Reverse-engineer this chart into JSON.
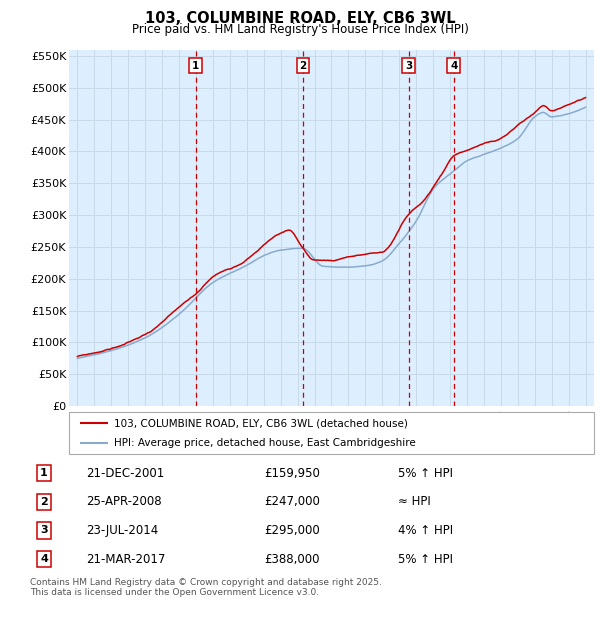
{
  "title": "103, COLUMBINE ROAD, ELY, CB6 3WL",
  "subtitle": "Price paid vs. HM Land Registry's House Price Index (HPI)",
  "ylabel_ticks": [
    "£0",
    "£50K",
    "£100K",
    "£150K",
    "£200K",
    "£250K",
    "£300K",
    "£350K",
    "£400K",
    "£450K",
    "£500K",
    "£550K"
  ],
  "ytick_values": [
    0,
    50000,
    100000,
    150000,
    200000,
    250000,
    300000,
    350000,
    400000,
    450000,
    500000,
    550000
  ],
  "xmin": 1994.5,
  "xmax": 2025.5,
  "ymin": 0,
  "ymax": 560000,
  "legend_house": "103, COLUMBINE ROAD, ELY, CB6 3WL (detached house)",
  "legend_hpi": "HPI: Average price, detached house, East Cambridgeshire",
  "transactions": [
    {
      "num": 1,
      "date": "21-DEC-2001",
      "price": "£159,950",
      "relation": "5% ↑ HPI",
      "year": 2001.97
    },
    {
      "num": 2,
      "date": "25-APR-2008",
      "price": "£247,000",
      "relation": "≈ HPI",
      "year": 2008.32
    },
    {
      "num": 3,
      "date": "23-JUL-2014",
      "price": "£295,000",
      "relation": "4% ↑ HPI",
      "year": 2014.56
    },
    {
      "num": 4,
      "date": "21-MAR-2017",
      "price": "£388,000",
      "relation": "5% ↑ HPI",
      "year": 2017.22
    }
  ],
  "footnote": "Contains HM Land Registry data © Crown copyright and database right 2025.\nThis data is licensed under the Open Government Licence v3.0.",
  "house_color": "#cc0000",
  "hpi_color": "#88aacc",
  "grid_color": "#c8dae8",
  "background_color": "#ddeeff",
  "vline_color": "#cc0000",
  "transaction_box_color": "#cc0000",
  "fig_bg": "#ffffff"
}
